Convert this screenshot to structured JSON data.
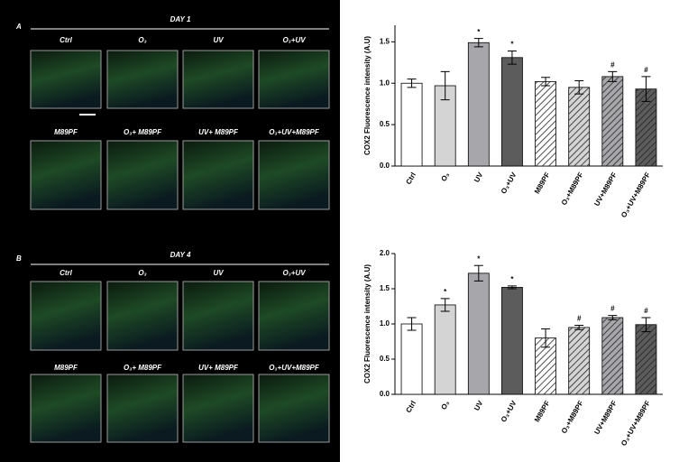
{
  "figure_panels": [
    {
      "letter": "A",
      "day": "DAY 1",
      "labels": [
        "Ctrl",
        "O₃",
        "UV",
        "O₃+UV",
        "M89PF",
        "O₃+ M89PF",
        "UV+ M89PF",
        "O₃+UV+M89PF"
      ]
    },
    {
      "letter": "B",
      "day": "DAY 4",
      "labels": [
        "Ctrl",
        "O₃",
        "UV",
        "O₃+UV",
        "M89PF",
        "O₃+ M89PF",
        "UV+ M89PF",
        "O₃+UV+M89PF"
      ]
    }
  ],
  "chart_data": [
    {
      "type": "bar",
      "ylabel": "COX2 Fluorescence intensity (A.U)",
      "categories": [
        "Ctrl",
        "O₃",
        "UV",
        "O₃+UV",
        "M89PF",
        "O₃+M89PF",
        "UV+M89PF",
        "O₃+UV+M89PF"
      ],
      "values": [
        1.0,
        0.97,
        1.49,
        1.31,
        1.02,
        0.95,
        1.08,
        0.93
      ],
      "errors": [
        0.05,
        0.17,
        0.05,
        0.08,
        0.05,
        0.08,
        0.06,
        0.15
      ],
      "markers": [
        null,
        null,
        "*",
        "*",
        null,
        null,
        "#",
        "#"
      ],
      "colors": [
        "#ffffff",
        "#d4d4d4",
        "#a7a7ab",
        "#5c5c5c",
        "#ffffff",
        "#d4d4d4",
        "#a7a7ab",
        "#5c5c5c"
      ],
      "hatch": [
        false,
        false,
        false,
        false,
        true,
        true,
        true,
        true
      ],
      "ylim": [
        0,
        1.7
      ],
      "yticks": [
        {
          "value": 0,
          "label": "0.0"
        },
        0.5,
        {
          "value": 1,
          "label": "1.0"
        },
        1.5
      ]
    },
    {
      "type": "bar",
      "ylabel": "COX2 Fluorescence intensity (A.U)",
      "categories": [
        "Ctrl",
        "O₃",
        "UV",
        "O₃+UV",
        "M89PF",
        "O₃+M89PF",
        "UV+M89PF",
        "O₃+UV+M89PF"
      ],
      "values": [
        1.0,
        1.27,
        1.72,
        1.52,
        0.8,
        0.95,
        1.09,
        0.99
      ],
      "errors": [
        0.09,
        0.09,
        0.11,
        0.02,
        0.13,
        0.03,
        0.03,
        0.1
      ],
      "markers": [
        null,
        "*",
        "*",
        "*",
        null,
        "#",
        "#",
        "#"
      ],
      "colors": [
        "#ffffff",
        "#d4d4d4",
        "#a7a7ab",
        "#5c5c5c",
        "#ffffff",
        "#d4d4d4",
        "#a7a7ab",
        "#5c5c5c"
      ],
      "hatch": [
        false,
        false,
        false,
        false,
        true,
        true,
        true,
        true
      ],
      "ylim": [
        0,
        2.0
      ],
      "yticks": [
        {
          "value": 0,
          "label": "0.0"
        },
        0.5,
        {
          "value": 1,
          "label": "1.0"
        },
        1.5,
        {
          "value": 2,
          "label": "2.0"
        }
      ]
    }
  ]
}
